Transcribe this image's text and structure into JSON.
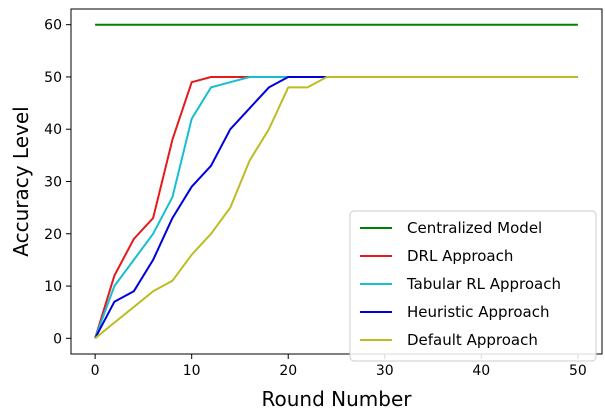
{
  "chart_data": {
    "type": "line",
    "title": "",
    "xlabel": "Round Number",
    "ylabel": "Accuracy Level",
    "xlim": [
      -2.5,
      52.5
    ],
    "ylim": [
      -3,
      63
    ],
    "xticks": [
      0,
      10,
      20,
      30,
      40,
      50
    ],
    "yticks": [
      0,
      10,
      20,
      30,
      40,
      50,
      60
    ],
    "grid": false,
    "legend_position": "lower-right",
    "series": [
      {
        "name": "Centralized Model",
        "color": "#008000",
        "x": [
          0,
          50
        ],
        "y": [
          60,
          60
        ]
      },
      {
        "name": "DRL Approach",
        "color": "#e41a1c",
        "x": [
          0,
          2,
          4,
          6,
          8,
          10,
          12,
          14,
          16,
          18,
          20,
          50
        ],
        "y": [
          0,
          12,
          19,
          23,
          38,
          49,
          50,
          50,
          50,
          50,
          50,
          50
        ]
      },
      {
        "name": "Tabular RL Approach",
        "color": "#17becf",
        "x": [
          0,
          2,
          4,
          6,
          8,
          10,
          12,
          14,
          16,
          18,
          20,
          50
        ],
        "y": [
          0,
          10,
          15,
          20,
          27,
          42,
          48,
          49,
          50,
          50,
          50,
          50
        ]
      },
      {
        "name": "Heuristic Approach",
        "color": "#0000dd",
        "x": [
          0,
          2,
          4,
          6,
          8,
          10,
          12,
          14,
          16,
          18,
          20,
          22,
          24,
          50
        ],
        "y": [
          0,
          7,
          9,
          15,
          23,
          29,
          33,
          40,
          44,
          48,
          50,
          50,
          50,
          50
        ]
      },
      {
        "name": "Default Approach",
        "color": "#bcbd22",
        "x": [
          0,
          2,
          4,
          6,
          8,
          10,
          12,
          14,
          16,
          18,
          20,
          22,
          24,
          50
        ],
        "y": [
          0,
          3,
          6,
          9,
          11,
          16,
          20,
          25,
          34,
          40,
          48,
          48,
          50,
          50
        ]
      }
    ]
  }
}
